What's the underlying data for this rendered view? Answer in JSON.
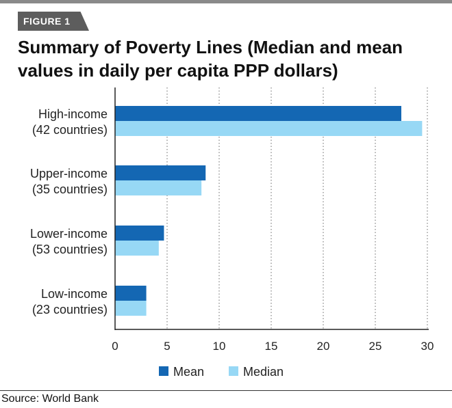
{
  "figure_tag": "FIGURE 1",
  "title": "Summary of Poverty Lines (Median and mean values in daily per capita PPP dollars)",
  "source": "Source: World Bank",
  "colors": {
    "mean": "#1467b3",
    "median": "#97d8f5",
    "grid": "#666666",
    "axis": "#222222"
  },
  "chart_data": {
    "type": "bar",
    "orientation": "horizontal",
    "categories": [
      [
        "High-income",
        "(42 countries)"
      ],
      [
        "Upper-income",
        "(35 countries)"
      ],
      [
        "Lower-income",
        "(53 countries)"
      ],
      [
        "Low-income",
        "(23 countries)"
      ]
    ],
    "series": [
      {
        "name": "Mean",
        "values": [
          27.5,
          8.7,
          4.7,
          3.0
        ]
      },
      {
        "name": "Median",
        "values": [
          29.5,
          8.3,
          4.2,
          3.0
        ]
      }
    ],
    "xlim": [
      0,
      30
    ],
    "xticks": [
      "0",
      "5",
      "10",
      "15",
      "20",
      "25",
      "30"
    ],
    "grid": "vertical dotted",
    "legend": "bottom-center"
  }
}
